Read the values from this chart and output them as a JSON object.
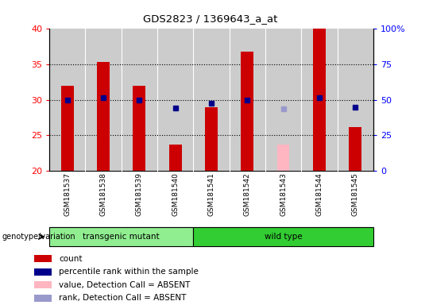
{
  "title": "GDS2823 / 1369643_a_at",
  "samples": [
    "GSM181537",
    "GSM181538",
    "GSM181539",
    "GSM181540",
    "GSM181541",
    "GSM181542",
    "GSM181543",
    "GSM181544",
    "GSM181545"
  ],
  "count_values": [
    32,
    35.3,
    32,
    23.7,
    29,
    36.8,
    null,
    40,
    26.2
  ],
  "count_absent_values": [
    null,
    null,
    null,
    null,
    null,
    null,
    23.7,
    null,
    null
  ],
  "rank_values": [
    30,
    30.3,
    30,
    null,
    29.5,
    30,
    null,
    30.3,
    null
  ],
  "rank_absent_values": [
    null,
    null,
    null,
    null,
    null,
    null,
    28.7,
    null,
    null
  ],
  "rank_dot_values": [
    null,
    null,
    null,
    28.8,
    null,
    null,
    null,
    null,
    29
  ],
  "ylim": [
    20,
    40
  ],
  "yticks": [
    20,
    25,
    30,
    35,
    40
  ],
  "y2labels": [
    "0",
    "25",
    "50",
    "75",
    "100%"
  ],
  "y2_mapped": [
    20,
    25,
    30,
    35,
    40
  ],
  "groups": [
    {
      "label": "transgenic mutant",
      "indices": [
        0,
        1,
        2,
        3
      ],
      "color": "#90EE90"
    },
    {
      "label": "wild type",
      "indices": [
        4,
        5,
        6,
        7,
        8
      ],
      "color": "#32CD32"
    }
  ],
  "bar_width": 0.35,
  "count_color": "#CC0000",
  "count_absent_color": "#FFB6C1",
  "rank_color": "#00008B",
  "rank_absent_color": "#9999CC",
  "bg_color": "#CCCCCC",
  "legend_items": [
    {
      "color": "#CC0000",
      "label": "count"
    },
    {
      "color": "#00008B",
      "label": "percentile rank within the sample"
    },
    {
      "color": "#FFB6C1",
      "label": "value, Detection Call = ABSENT"
    },
    {
      "color": "#9999CC",
      "label": "rank, Detection Call = ABSENT"
    }
  ]
}
